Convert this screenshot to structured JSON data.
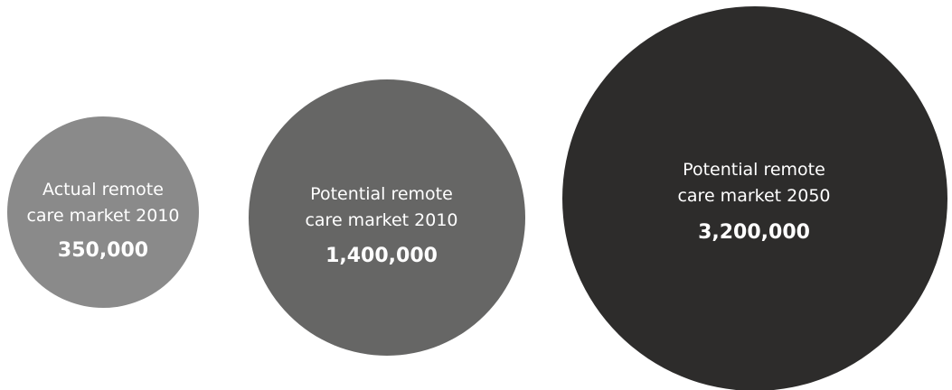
{
  "chart_data": {
    "type": "bubble",
    "title": "",
    "series": [
      {
        "label_lines": [
          "Actual remote",
          "care market 2010"
        ],
        "value": 350000,
        "value_label": "350,000",
        "color": "#8a8a8a"
      },
      {
        "label_lines": [
          "Potential remote",
          "care market 2010"
        ],
        "value": 1400000,
        "value_label": "1,400,000",
        "color": "#666665"
      },
      {
        "label_lines": [
          "Potential remote",
          "care market 2050"
        ],
        "value": 3200000,
        "value_label": "3,200,000",
        "color": "#2d2c2b"
      }
    ]
  }
}
